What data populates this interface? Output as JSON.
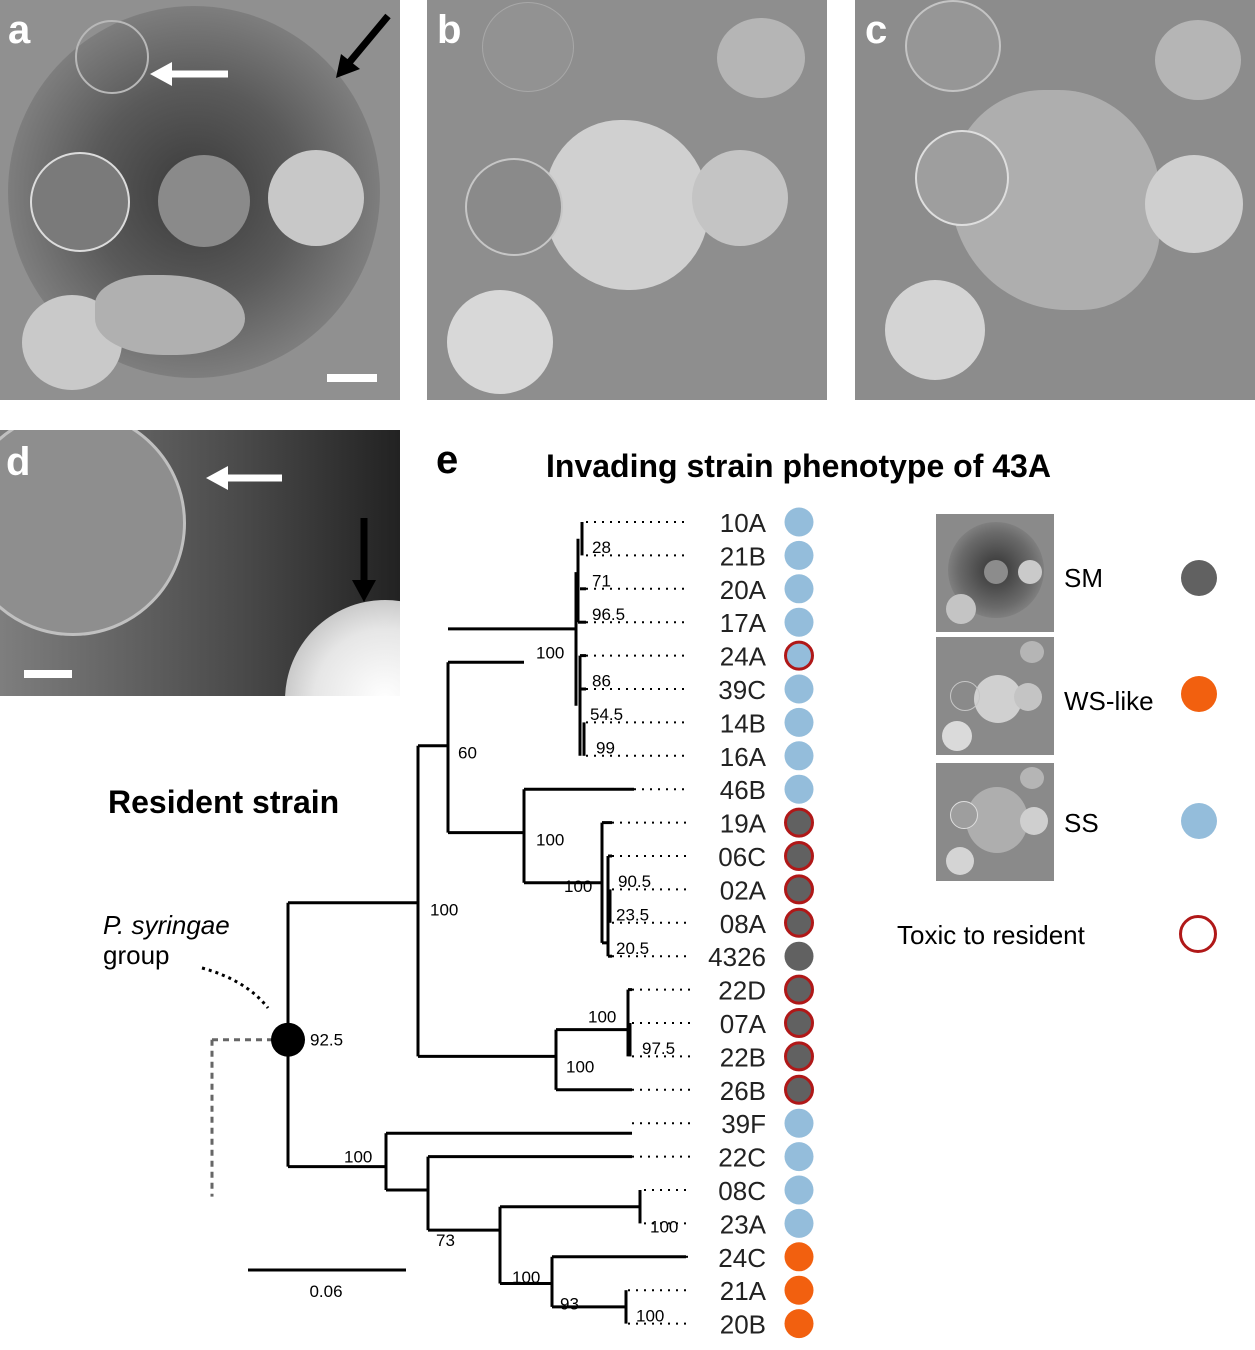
{
  "panel_labels": {
    "a": "a",
    "b": "b",
    "c": "c",
    "d": "d",
    "e": "e"
  },
  "tree": {
    "title": "Invading strain phenotype of 43A",
    "resident_label": "Resident strain",
    "group_label_italic": "P. syringae",
    "group_label": "group",
    "scale_label": "0.06",
    "root_support": "92.5",
    "colors": {
      "SM": "#616161",
      "WS-like": "#f2600f",
      "SS": "#94bddb",
      "toxic_ring": "#b01818"
    },
    "leaves": [
      {
        "name": "10A",
        "phenotype": "SS",
        "toxic": false
      },
      {
        "name": "21B",
        "phenotype": "SS",
        "toxic": false
      },
      {
        "name": "20A",
        "phenotype": "SS",
        "toxic": false
      },
      {
        "name": "17A",
        "phenotype": "SS",
        "toxic": false
      },
      {
        "name": "24A",
        "phenotype": "SS",
        "toxic": true
      },
      {
        "name": "39C",
        "phenotype": "SS",
        "toxic": false
      },
      {
        "name": "14B",
        "phenotype": "SS",
        "toxic": false
      },
      {
        "name": "16A",
        "phenotype": "SS",
        "toxic": false
      },
      {
        "name": "46B",
        "phenotype": "SS",
        "toxic": false
      },
      {
        "name": "19A",
        "phenotype": "SM",
        "toxic": true
      },
      {
        "name": "06C",
        "phenotype": "SM",
        "toxic": true
      },
      {
        "name": "02A",
        "phenotype": "SM",
        "toxic": true
      },
      {
        "name": "08A",
        "phenotype": "SM",
        "toxic": true
      },
      {
        "name": "4326",
        "phenotype": "SM",
        "toxic": false
      },
      {
        "name": "22D",
        "phenotype": "SM",
        "toxic": true
      },
      {
        "name": "07A",
        "phenotype": "SM",
        "toxic": true
      },
      {
        "name": "22B",
        "phenotype": "SM",
        "toxic": true
      },
      {
        "name": "26B",
        "phenotype": "SM",
        "toxic": true
      },
      {
        "name": "39F",
        "phenotype": "SS",
        "toxic": false
      },
      {
        "name": "22C",
        "phenotype": "SS",
        "toxic": false
      },
      {
        "name": "08C",
        "phenotype": "SS",
        "toxic": false
      },
      {
        "name": "23A",
        "phenotype": "SS",
        "toxic": false
      },
      {
        "name": "24C",
        "phenotype": "WS-like",
        "toxic": false
      },
      {
        "name": "21A",
        "phenotype": "WS-like",
        "toxic": false
      },
      {
        "name": "20B",
        "phenotype": "WS-like",
        "toxic": false
      }
    ],
    "support_values": [
      "28",
      "71",
      "96.5",
      "100",
      "86",
      "54.5",
      "99",
      "60",
      "100",
      "100",
      "90.5",
      "23.5",
      "20.5",
      "100",
      "97.5",
      "100",
      "100",
      "100",
      "73",
      "100",
      "100",
      "93",
      "100"
    ]
  },
  "legend": {
    "items": [
      {
        "label": "SM",
        "color": "#616161"
      },
      {
        "label": "WS-like",
        "color": "#f2600f"
      },
      {
        "label": "SS",
        "color": "#94bddb"
      }
    ],
    "toxic_label": "Toxic to resident"
  }
}
